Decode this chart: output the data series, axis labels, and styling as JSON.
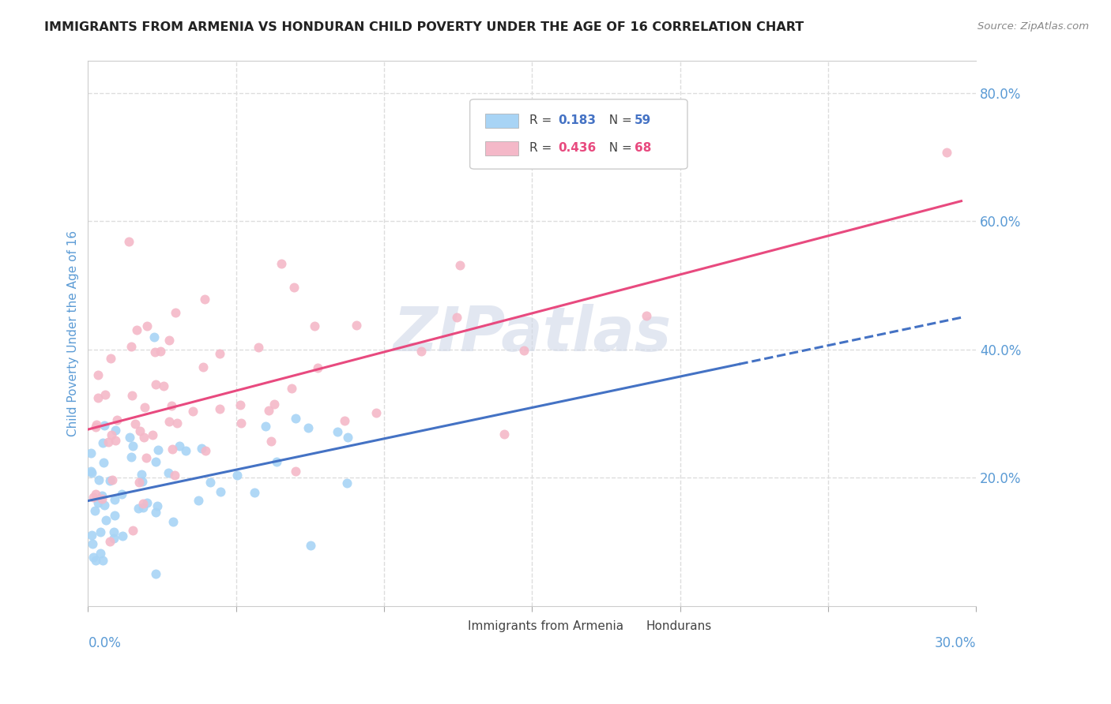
{
  "title": "IMMIGRANTS FROM ARMENIA VS HONDURAN CHILD POVERTY UNDER THE AGE OF 16 CORRELATION CHART",
  "source": "Source: ZipAtlas.com",
  "ylabel": "Child Poverty Under the Age of 16",
  "watermark": "ZIPatlas",
  "xlim": [
    0.0,
    0.3
  ],
  "ylim": [
    0.0,
    0.85
  ],
  "background_color": "#ffffff",
  "scatter_color_armenia": "#a8d4f5",
  "scatter_color_honduras": "#f4b8c8",
  "line_color_armenia": "#4472c4",
  "line_color_honduras": "#e84a7f",
  "title_color": "#222222",
  "axis_label_color": "#5b9bd5",
  "tick_label_color": "#5b9bd5",
  "watermark_color": "#d0d8e8",
  "grid_color": "#dddddd",
  "R_armenia": "0.183",
  "N_armenia": "59",
  "R_honduras": "0.436",
  "N_honduras": "68",
  "legend_label_armenia": "Immigrants from Armenia",
  "legend_label_honduras": "Hondurans"
}
